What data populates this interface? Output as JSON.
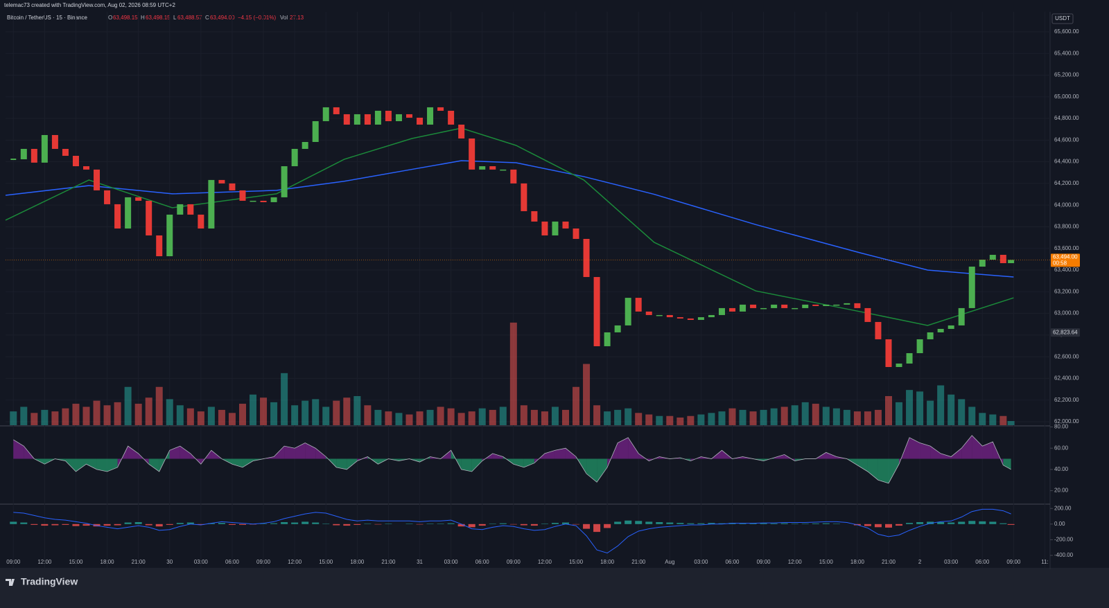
{
  "header": {
    "credit": "telemac73 created with TradingView.com, Aug 02, 2026 08:59 UTC+2"
  },
  "legend": {
    "symbol": "Bitcoin / TetherUS · 15 · Binance",
    "open_label": "O",
    "open": "63,498.15",
    "high_label": "H",
    "high": "63,498.15",
    "low_label": "L",
    "low": "63,488.57",
    "close_label": "C",
    "close": "63,494.00",
    "change": "−4.15 (−0.01%)",
    "volume_label": "Vol",
    "volume": "27.13"
  },
  "chart_data": {
    "type": "candlestick",
    "currency": "USDT",
    "x": [
      0,
      4,
      8,
      12,
      16,
      20,
      24,
      28,
      32,
      36,
      40,
      44,
      48,
      52,
      56,
      60,
      64,
      68,
      72,
      76,
      80,
      84,
      88,
      92,
      96,
      100,
      104,
      108,
      112,
      116,
      120,
      124,
      128,
      132,
      136,
      140,
      144,
      148,
      152,
      156,
      160,
      164,
      168,
      172,
      176,
      180,
      184,
      188,
      192,
      196,
      200,
      204,
      208,
      212,
      216,
      220,
      224,
      228,
      232,
      236,
      240,
      244,
      248,
      252,
      256,
      260,
      264,
      268,
      272,
      276,
      280,
      284,
      288,
      292,
      296,
      300,
      304,
      308,
      312,
      316,
      320,
      324,
      328,
      332,
      336,
      340,
      344,
      348,
      352,
      356,
      360,
      364,
      368,
      372,
      376,
      380,
      383
    ],
    "close": [
      64423,
      64519,
      64392,
      64647,
      64519,
      64455,
      64359,
      64328,
      64136,
      64008,
      63784,
      64072,
      64040,
      63720,
      63528,
      63912,
      64008,
      63912,
      63784,
      64232,
      64200,
      64136,
      64040,
      64040,
      64027,
      64072,
      64359,
      64519,
      64583,
      64775,
      64903,
      64839,
      64743,
      64839,
      64743,
      64871,
      64775,
      64839,
      64807,
      64743,
      64903,
      64871,
      64743,
      64615,
      64328,
      64359,
      64328,
      64328,
      64200,
      63944,
      63848,
      63720,
      63848,
      63784,
      63688,
      63336,
      62697,
      62825,
      62889,
      63144,
      63017,
      62985,
      62985,
      62965,
      62953,
      62940,
      62965,
      62985,
      63049,
      63017,
      63081,
      63049,
      63049,
      63081,
      63049,
      63049,
      63081,
      63068,
      63081,
      63081,
      63094,
      63049,
      62921,
      62761,
      62505,
      62537,
      62633,
      62761,
      62825,
      62857,
      62889,
      63049,
      63432,
      63496,
      63541,
      63464,
      63494
    ],
    "xlim": [
      -3,
      398
    ],
    "xticks": [
      {
        "value": 0,
        "label": "09:00"
      },
      {
        "value": 12,
        "label": "12:00"
      },
      {
        "value": 24,
        "label": "15:00"
      },
      {
        "value": 36,
        "label": "18:00"
      },
      {
        "value": 48,
        "label": "21:00"
      },
      {
        "value": 60,
        "label": "30"
      },
      {
        "value": 72,
        "label": "03:00"
      },
      {
        "value": 84,
        "label": "06:00"
      },
      {
        "value": 96,
        "label": "09:00"
      },
      {
        "value": 108,
        "label": "12:00"
      },
      {
        "value": 120,
        "label": "15:00"
      },
      {
        "value": 132,
        "label": "18:00"
      },
      {
        "value": 144,
        "label": "21:00"
      },
      {
        "value": 156,
        "label": "31"
      },
      {
        "value": 168,
        "label": "03:00"
      },
      {
        "value": 180,
        "label": "06:00"
      },
      {
        "value": 192,
        "label": "09:00"
      },
      {
        "value": 204,
        "label": "12:00"
      },
      {
        "value": 216,
        "label": "15:00"
      },
      {
        "value": 228,
        "label": "18:00"
      },
      {
        "value": 240,
        "label": "21:00"
      },
      {
        "value": 252,
        "label": "Aug"
      },
      {
        "value": 264,
        "label": "03:00"
      },
      {
        "value": 276,
        "label": "06:00"
      },
      {
        "value": 288,
        "label": "09:00"
      },
      {
        "value": 300,
        "label": "12:00"
      },
      {
        "value": 312,
        "label": "15:00"
      },
      {
        "value": 324,
        "label": "18:00"
      },
      {
        "value": 336,
        "label": "21:00"
      },
      {
        "value": 348,
        "label": "2"
      },
      {
        "value": 360,
        "label": "03:00"
      },
      {
        "value": 372,
        "label": "06:00"
      },
      {
        "value": 384,
        "label": "09:00"
      },
      {
        "value": 396,
        "label": "11:"
      }
    ],
    "ylim": [
      61968,
      65785
    ],
    "yticks": [
      {
        "value": 62000,
        "label": "62,000.00"
      },
      {
        "value": 62200,
        "label": "62,200.00"
      },
      {
        "value": 62400,
        "label": "62,400.00"
      },
      {
        "value": 62600,
        "label": "62,600.00"
      },
      {
        "value": 62800,
        "label": "62,800.00"
      },
      {
        "value": 63000,
        "label": "63,000.00"
      },
      {
        "value": 63200,
        "label": "63,200.00"
      },
      {
        "value": 63400,
        "label": "63,400.00"
      },
      {
        "value": 63600,
        "label": "63,600.00"
      },
      {
        "value": 63800,
        "label": "63,800.00"
      },
      {
        "value": 64000,
        "label": "64,000.00"
      },
      {
        "value": 64200,
        "label": "64,200.00"
      },
      {
        "value": 64400,
        "label": "64,400.00"
      },
      {
        "value": 64600,
        "label": "64,600.00"
      },
      {
        "value": 64800,
        "label": "64,800.00"
      },
      {
        "value": 65000,
        "label": "65,000.00"
      },
      {
        "value": 65200,
        "label": "65,200.00"
      },
      {
        "value": 65400,
        "label": "65,400.00"
      },
      {
        "value": 65600,
        "label": "65,600.00"
      }
    ],
    "up_color": "#4caf50",
    "down_color": "#e53935",
    "price_tag": {
      "value": 63494,
      "label": "63,494.00",
      "countdown": "00:58",
      "color": "#f57c00"
    },
    "marker_tag": {
      "value": 62823.64,
      "label": "62,823.64"
    },
    "moving_averages": {
      "x": [
        -3,
        29,
        61,
        101,
        127,
        153,
        172,
        193,
        219,
        246,
        285,
        325,
        351,
        384
      ],
      "series": [
        {
          "color": "#2962ff",
          "values": [
            64091,
            64180,
            64104,
            64136,
            64220,
            64330,
            64410,
            64391,
            64263,
            64100,
            63820,
            63560,
            63400,
            63336
          ]
        },
        {
          "color": "#1b8a3a",
          "values": [
            63861,
            64232,
            63976,
            64104,
            64423,
            64615,
            64711,
            64551,
            64232,
            63656,
            63208,
            63017,
            62889,
            63144
          ]
        }
      ]
    },
    "volume": {
      "ylim": [
        0,
        2700
      ],
      "values": [
        90,
        120,
        80,
        100,
        90,
        110,
        140,
        120,
        160,
        130,
        150,
        250,
        140,
        180,
        250,
        170,
        130,
        110,
        90,
        120,
        100,
        80,
        140,
        200,
        180,
        150,
        340,
        130,
        160,
        170,
        120,
        160,
        180,
        190,
        130,
        100,
        90,
        80,
        70,
        90,
        100,
        120,
        110,
        80,
        90,
        110,
        100,
        120,
        670,
        130,
        100,
        90,
        120,
        100,
        250,
        400,
        130,
        90,
        100,
        110,
        80,
        70,
        60,
        60,
        50,
        60,
        70,
        80,
        90,
        110,
        100,
        90,
        100,
        110,
        120,
        130,
        150,
        140,
        120,
        110,
        100,
        90,
        90,
        100,
        190,
        150,
        230,
        220,
        160,
        260,
        200,
        170,
        120,
        80,
        70,
        60,
        27
      ]
    },
    "rsi": {
      "color": "#9c27b0",
      "ylim": [
        8,
        81
      ],
      "yticks": [
        {
          "value": 20,
          "label": "20.00"
        },
        {
          "value": 40,
          "label": "40.00"
        },
        {
          "value": 60,
          "label": "60.00"
        },
        {
          "value": 80,
          "label": "80.00"
        }
      ],
      "values": [
        68,
        62,
        50,
        45,
        50,
        48,
        38,
        45,
        40,
        38,
        42,
        62,
        55,
        45,
        38,
        58,
        62,
        55,
        45,
        58,
        50,
        45,
        42,
        48,
        50,
        52,
        62,
        60,
        65,
        60,
        52,
        42,
        40,
        48,
        52,
        45,
        50,
        48,
        50,
        47,
        52,
        50,
        58,
        40,
        38,
        48,
        55,
        52,
        45,
        42,
        46,
        55,
        58,
        60,
        52,
        36,
        28,
        42,
        65,
        70,
        55,
        48,
        52,
        50,
        51,
        48,
        52,
        50,
        58,
        50,
        52,
        50,
        48,
        51,
        54,
        48,
        50,
        50,
        56,
        52,
        50,
        44,
        38,
        30,
        27,
        45,
        70,
        65,
        62,
        55,
        52,
        60,
        72,
        62,
        66,
        44,
        40
      ]
    },
    "macd": {
      "ylim": [
        -559,
        246
      ],
      "yticks": [
        {
          "value": -400,
          "label": "-400.00"
        },
        {
          "value": -200,
          "label": "-200.00"
        },
        {
          "value": 0,
          "label": "0.00"
        },
        {
          "value": 200,
          "label": "200.00"
        }
      ],
      "histogram": [
        30,
        20,
        -10,
        -20,
        -15,
        -10,
        -25,
        -20,
        -30,
        -20,
        -15,
        20,
        25,
        -15,
        -30,
        -10,
        15,
        20,
        -10,
        10,
        15,
        -10,
        -10,
        -5,
        5,
        10,
        25,
        20,
        30,
        20,
        5,
        -15,
        -20,
        -10,
        5,
        -5,
        5,
        0,
        5,
        -5,
        5,
        5,
        10,
        -30,
        -40,
        -20,
        5,
        10,
        -5,
        -15,
        -20,
        5,
        15,
        20,
        -5,
        -60,
        -100,
        -50,
        30,
        45,
        40,
        30,
        25,
        20,
        15,
        10,
        10,
        15,
        10,
        15,
        10,
        10,
        10,
        8,
        10,
        5,
        5,
        8,
        10,
        5,
        0,
        -15,
        -25,
        -40,
        -45,
        -20,
        15,
        25,
        30,
        25,
        20,
        30,
        40,
        35,
        30,
        10,
        -10
      ],
      "line_color": "#2962ff",
      "line": [
        150,
        140,
        110,
        80,
        60,
        50,
        30,
        10,
        -20,
        -40,
        -60,
        -40,
        -20,
        -40,
        -80,
        -70,
        -30,
        0,
        -10,
        10,
        30,
        20,
        10,
        0,
        10,
        30,
        70,
        100,
        130,
        150,
        140,
        100,
        60,
        40,
        50,
        40,
        40,
        40,
        40,
        30,
        40,
        40,
        50,
        0,
        -60,
        -70,
        -40,
        -20,
        -30,
        -60,
        -80,
        -70,
        -30,
        0,
        -20,
        -150,
        -330,
        -370,
        -280,
        -160,
        -90,
        -60,
        -40,
        -30,
        -20,
        -10,
        -10,
        0,
        0,
        10,
        10,
        10,
        15,
        15,
        20,
        20,
        20,
        25,
        30,
        30,
        20,
        -10,
        -50,
        -130,
        -160,
        -140,
        -80,
        -30,
        10,
        30,
        40,
        90,
        160,
        190,
        190,
        170,
        130
      ]
    }
  },
  "footer": {
    "brand": "TradingView"
  }
}
